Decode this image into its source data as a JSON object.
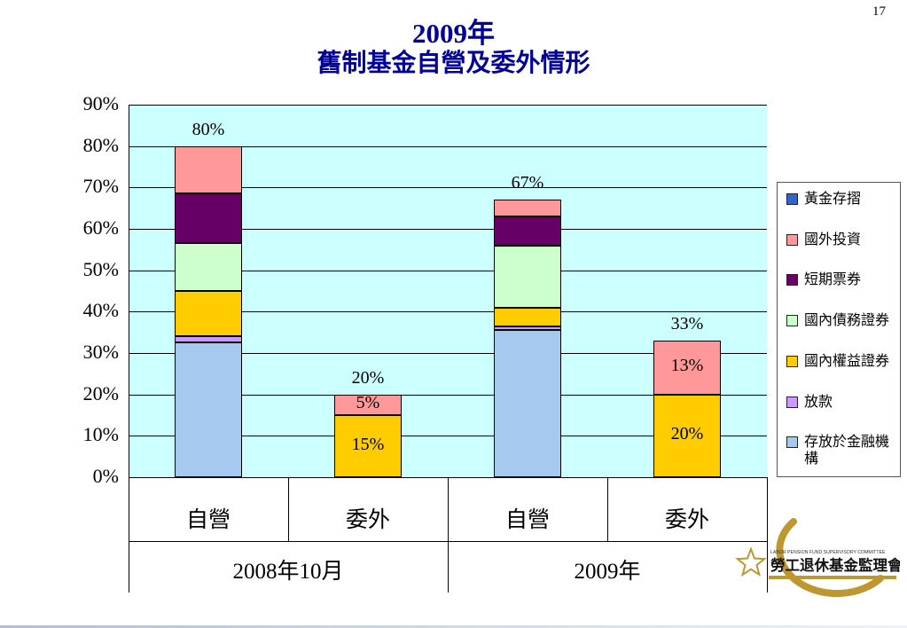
{
  "page_number": "17",
  "title": {
    "line1": "2009年",
    "line2": "舊制基金自營及委外情形"
  },
  "chart_data": {
    "type": "bar",
    "stacked": true,
    "title": "2009年 舊制基金自營及委外情形",
    "plot_bg": "#ccffff",
    "grid": true,
    "legend_position": "right",
    "ylim": [
      0,
      90
    ],
    "ytick_step": 10,
    "yticks": [
      "0%",
      "10%",
      "20%",
      "30%",
      "40%",
      "50%",
      "60%",
      "70%",
      "80%",
      "90%"
    ],
    "categories": [
      "自營",
      "委外",
      "自營",
      "委外"
    ],
    "group_labels": [
      "2008年10月",
      "2009年"
    ],
    "series": [
      {
        "name": "存放於金融機構",
        "color": "#a6c9f0",
        "values": [
          32.5,
          0,
          35.5,
          0
        ]
      },
      {
        "name": "放款",
        "color": "#cc99ff",
        "values": [
          1.5,
          0,
          1,
          0
        ]
      },
      {
        "name": "國內權益證券",
        "color": "#ffcc00",
        "values": [
          11,
          15,
          4.5,
          20
        ]
      },
      {
        "name": "國內債務證券",
        "color": "#ccffcc",
        "values": [
          11.5,
          0,
          15,
          0
        ]
      },
      {
        "name": "短期票券",
        "color": "#660066",
        "values": [
          12,
          0,
          7,
          0
        ]
      },
      {
        "name": "國外投資",
        "color": "#ff9999",
        "values": [
          11.5,
          5,
          4,
          13
        ]
      },
      {
        "name": "黃金存摺",
        "color": "#3366cc",
        "values": [
          0,
          0,
          0,
          0
        ]
      }
    ],
    "bar_total_labels": [
      "80%",
      "20%",
      "67%",
      "33%"
    ],
    "segment_labels": [
      {
        "bar": 1,
        "series": "國外投資",
        "text": "5%"
      },
      {
        "bar": 1,
        "series": "國內權益證券",
        "text": "15%"
      },
      {
        "bar": 3,
        "series": "國外投資",
        "text": "13%"
      },
      {
        "bar": 3,
        "series": "國內權益證券",
        "text": "20%"
      }
    ]
  },
  "legend": {
    "items": [
      {
        "label": "黃金存摺",
        "color": "#3366cc"
      },
      {
        "label": "國外投資",
        "color": "#ff9999"
      },
      {
        "label": "短期票券",
        "color": "#660066"
      },
      {
        "label": "國內債務證券",
        "color": "#ccffcc"
      },
      {
        "label": "國內權益證券",
        "color": "#ffcc00"
      },
      {
        "label": "放款",
        "color": "#cc99ff"
      },
      {
        "label": "存放於金融機構",
        "color": "#a6c9f0"
      }
    ]
  },
  "logo": {
    "caption": "LABOR PENSION FUND SUPERVISORY COMMITTEE",
    "name": "勞工退休基金監理會"
  }
}
